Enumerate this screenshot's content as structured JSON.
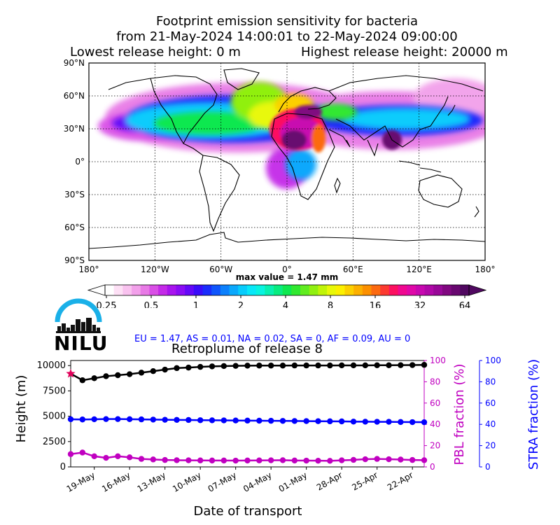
{
  "title": {
    "line1": "Footprint emission sensitivity for bacteria",
    "line2": "from 21-May-2024 14:00:01 to 22-May-2024 09:00:00",
    "line3_left": "Lowest release height: 0 m",
    "line3_right": "Highest release height: 20000 m"
  },
  "map": {
    "lat_labels": [
      "90°N",
      "60°N",
      "30°N",
      "0°",
      "30°S",
      "60°S",
      "90°S"
    ],
    "lon_labels": [
      "180°",
      "120°W",
      "60°W",
      "0°",
      "60°E",
      "120°E",
      "180°"
    ],
    "max_value_label": "max value = 1.47 mm"
  },
  "colorbar": {
    "ticks": [
      "0.25",
      "0.5",
      "1",
      "2",
      "4",
      "8",
      "16",
      "32",
      "64"
    ],
    "unit": "mm",
    "colors": [
      "#ffffff",
      "#fde0f5",
      "#f9c2ef",
      "#f2a0ea",
      "#e87ae6",
      "#d94fe6",
      "#c42ae8",
      "#a814ee",
      "#8a0cf4",
      "#6408f8",
      "#3a0cfa",
      "#1a2cfc",
      "#0f55fc",
      "#0c80fc",
      "#0aa8fc",
      "#08ccfc",
      "#08e8f8",
      "#08f4e0",
      "#08f0b0",
      "#08ec80",
      "#0ee850",
      "#30e830",
      "#60ec20",
      "#90f010",
      "#c0f408",
      "#e8f808",
      "#fcf000",
      "#fcd000",
      "#fcb000",
      "#fc9000",
      "#fc6a10",
      "#fc3a30",
      "#fc1060",
      "#f00890",
      "#e008a8",
      "#c808b0",
      "#b008a8",
      "#980898",
      "#800880",
      "#680870",
      "#500860"
    ]
  },
  "logo": {
    "text": "NILU"
  },
  "ratios_text": "EU = 1.47,  AS = 0.01,  NA = 0.02,  SA = 0,  AF = 0.09,  AU = 0",
  "retroplume": {
    "title": "Retroplume of release 8",
    "ylabel_left": "Height (m)",
    "ylabel_pbl": "PBL fraction (%)",
    "ylabel_stra": "STRA fraction (%)",
    "xlabel": "Date of transport"
  },
  "chart_data": {
    "type": "line",
    "title": "Retroplume of release 8",
    "xlabel": "Date of transport",
    "ylabel": "Height (m)",
    "x_tick_labels": [
      "19-May",
      "16-May",
      "13-May",
      "10-May",
      "07-May",
      "04-May",
      "01-May",
      "28-Apr",
      "25-Apr",
      "22-Apr"
    ],
    "x_tick_days_before_start": [
      2,
      5,
      8,
      11,
      14,
      17,
      20,
      23,
      26,
      29
    ],
    "x_days_before_start": [
      0,
      1,
      2,
      3,
      4,
      5,
      6,
      7,
      8,
      9,
      10,
      11,
      12,
      13,
      14,
      15,
      16,
      17,
      18,
      19,
      20,
      21,
      22,
      23,
      24,
      25,
      26,
      27,
      28,
      29,
      30
    ],
    "ylim_left": [
      0,
      10500
    ],
    "yticks_left": [
      0,
      2500,
      5000,
      7500,
      10000
    ],
    "ylim_right": [
      0,
      100
    ],
    "yticks_right": [
      0,
      20,
      40,
      60,
      80,
      100
    ],
    "release_height_marker": 9200,
    "series": [
      {
        "axis": "left",
        "color": "#000000",
        "values": [
          9200,
          8550,
          8750,
          8950,
          9050,
          9150,
          9300,
          9450,
          9600,
          9750,
          9800,
          9870,
          9920,
          9950,
          9970,
          9990,
          10000,
          10000,
          10000,
          10010,
          10010,
          10010,
          10010,
          10020,
          10020,
          10020,
          10030,
          10030,
          10040,
          10050,
          10070
        ]
      },
      {
        "axis": "left",
        "color": "#0000ff",
        "values": [
          4700,
          4680,
          4700,
          4720,
          4720,
          4710,
          4690,
          4670,
          4650,
          4640,
          4630,
          4610,
          4600,
          4590,
          4580,
          4570,
          4560,
          4550,
          4540,
          4530,
          4520,
          4510,
          4500,
          4490,
          4470,
          4460,
          4450,
          4450,
          4430,
          4420,
          4410
        ]
      },
      {
        "axis": "right",
        "color": "#c000c0",
        "values": [
          12,
          13.5,
          10,
          8.5,
          10,
          9,
          7.5,
          7,
          6.5,
          6.3,
          6.2,
          6.1,
          6.0,
          6.0,
          5.9,
          6.0,
          6.1,
          6.2,
          6.3,
          6.0,
          5.9,
          5.8,
          5.7,
          6.2,
          6.6,
          7.2,
          7.5,
          7.2,
          6.9,
          6.5,
          6.3
        ]
      }
    ]
  }
}
